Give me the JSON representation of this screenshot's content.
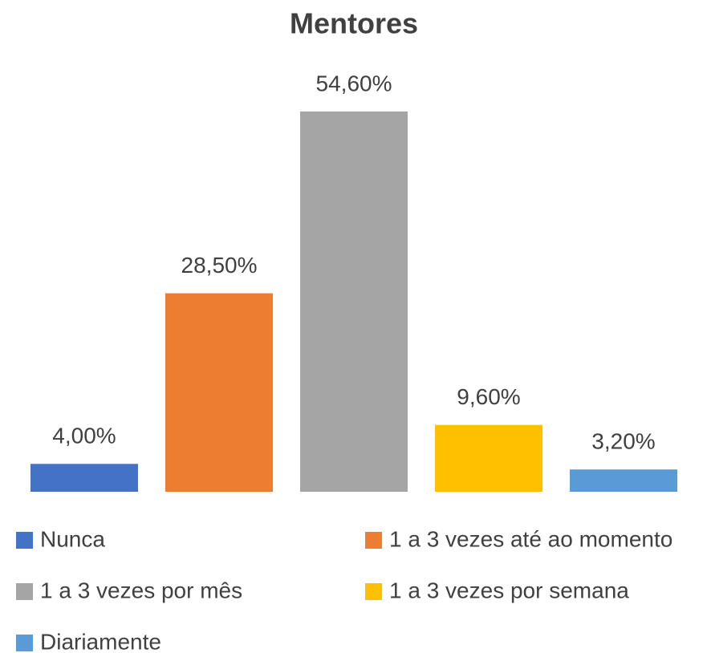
{
  "chart_data": {
    "type": "bar",
    "title": "Mentores",
    "series": [
      {
        "name": "Nunca",
        "color": "#4472c4",
        "values": [
          4.0
        ],
        "value_labels": [
          "4,00%"
        ]
      },
      {
        "name": "1 a 3 vezes até ao momento",
        "color": "#ed7d31",
        "values": [
          28.5
        ],
        "value_labels": [
          "28,50%"
        ]
      },
      {
        "name": "1 a 3 vezes por mês",
        "color": "#a5a5a5",
        "values": [
          54.6
        ],
        "value_labels": [
          "54,60%"
        ]
      },
      {
        "name": "1 a 3 vezes por semana",
        "color": "#ffc000",
        "values": [
          9.6
        ],
        "value_labels": [
          "9,60%"
        ]
      },
      {
        "name": "Diariamente",
        "color": "#5b9bd5",
        "values": [
          3.2
        ],
        "value_labels": [
          "3,20%"
        ]
      }
    ],
    "legend": "bottom"
  }
}
